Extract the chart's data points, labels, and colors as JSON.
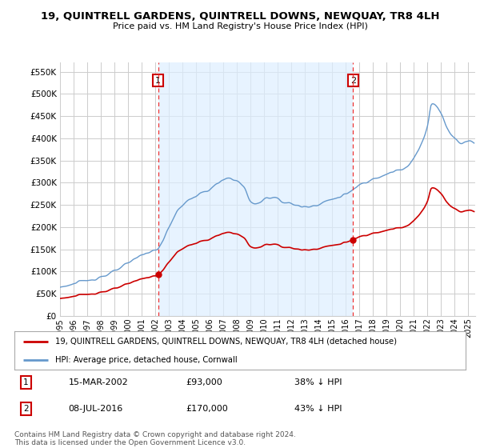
{
  "title": "19, QUINTRELL GARDENS, QUINTRELL DOWNS, NEWQUAY, TR8 4LH",
  "subtitle": "Price paid vs. HM Land Registry's House Price Index (HPI)",
  "legend_label_red": "19, QUINTRELL GARDENS, QUINTRELL DOWNS, NEWQUAY, TR8 4LH (detached house)",
  "legend_label_blue": "HPI: Average price, detached house, Cornwall",
  "transaction1_date": "15-MAR-2002",
  "transaction1_price": "£93,000",
  "transaction1_hpi": "38% ↓ HPI",
  "transaction2_date": "08-JUL-2016",
  "transaction2_price": "£170,000",
  "transaction2_hpi": "43% ↓ HPI",
  "footer": "Contains HM Land Registry data © Crown copyright and database right 2024.\nThis data is licensed under the Open Government Licence v3.0.",
  "vline1_x": 2002.21,
  "vline2_x": 2016.52,
  "sale1_x": 2002.21,
  "sale1_y": 93000,
  "sale2_x": 2016.52,
  "sale2_y": 170000,
  "ylim": [
    0,
    570000
  ],
  "xlim_start": 1995.0,
  "xlim_end": 2025.5,
  "yticks": [
    0,
    50000,
    100000,
    150000,
    200000,
    250000,
    300000,
    350000,
    400000,
    450000,
    500000,
    550000
  ],
  "xticks": [
    1995,
    1996,
    1997,
    1998,
    1999,
    2000,
    2001,
    2002,
    2003,
    2004,
    2005,
    2006,
    2007,
    2008,
    2009,
    2010,
    2011,
    2012,
    2013,
    2014,
    2015,
    2016,
    2017,
    2018,
    2019,
    2020,
    2021,
    2022,
    2023,
    2024,
    2025
  ],
  "background_color": "#ffffff",
  "grid_color": "#cccccc",
  "red_color": "#cc0000",
  "blue_color": "#6699cc",
  "shade_color": "#ddeeff",
  "vline_color": "#ee3333"
}
